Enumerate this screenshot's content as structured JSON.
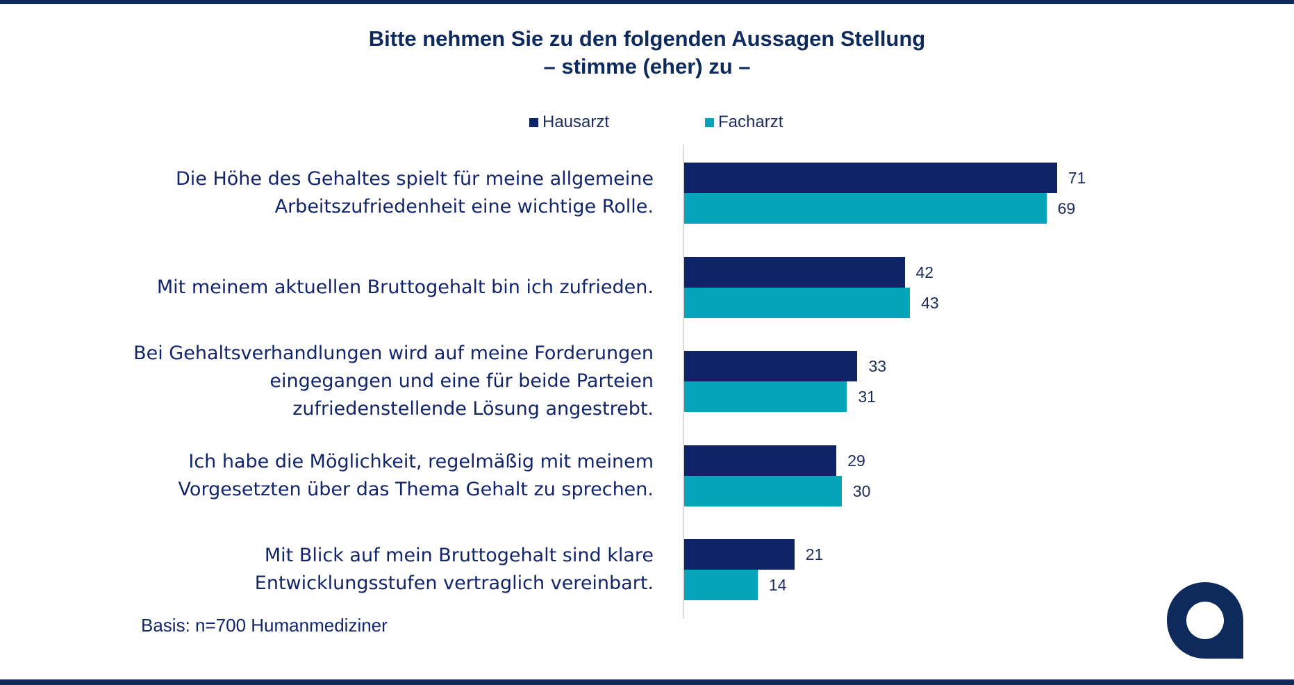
{
  "title": {
    "line1": "Bitte nehmen Sie zu den folgenden Aussagen Stellung",
    "line2": "– stimme (eher) zu –"
  },
  "colors": {
    "hausarzt": "#0e2467",
    "facharzt": "#05a4b9",
    "frame": "#0e2a5c"
  },
  "chart_data": {
    "type": "bar",
    "orientation": "horizontal",
    "categories": [
      [
        "Die Höhe des Gehaltes spielt für meine allgemeine",
        "Arbeitszufriedenheit eine wichtige Rolle."
      ],
      [
        "Mit meinem aktuellen Bruttogehalt bin ich zufrieden."
      ],
      [
        "Bei Gehaltsverhandlungen wird auf meine Forderungen",
        "eingegangen und eine für beide Parteien",
        "zufriedenstellende Lösung angestrebt."
      ],
      [
        "Ich habe die Möglichkeit, regelmäßig mit meinem",
        "Vorgesetzten über das Thema Gehalt zu sprechen."
      ],
      [
        "Mit Blick auf mein Bruttogehalt sind klare",
        "Entwicklungsstufen vertraglich vereinbart."
      ]
    ],
    "series": [
      {
        "name": "Hausarzt",
        "values": [
          71,
          42,
          33,
          29,
          21
        ]
      },
      {
        "name": "Facharzt",
        "values": [
          69,
          43,
          31,
          30,
          14
        ]
      }
    ],
    "xlim": [
      0,
      100
    ],
    "legend": "top",
    "grid": false
  },
  "footnote": "Basis: n=700 Humanmediziner"
}
